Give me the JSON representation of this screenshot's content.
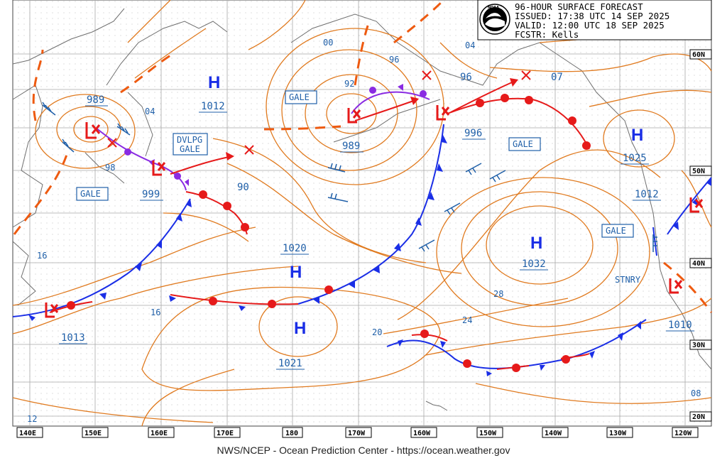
{
  "header": {
    "logo_text": "NOAA",
    "line1": "96-HOUR SURFACE FORECAST",
    "line2": "ISSUED: 17:38 UTC 14 SEP 2025",
    "line3": "VALID:  12:00 UTC 18 SEP 2025",
    "line4": "FCSTR:  Kells"
  },
  "footer": "NWS/NCEP - Ocean Prediction Center - https://ocean.weather.gov",
  "colors": {
    "isobar": "#e07a1f",
    "cold_front": "#1a2ee6",
    "warm_front": "#e61a1a",
    "occluded": "#8a2be2",
    "high": "#1a2ee6",
    "low": "#e61a1a",
    "grid": "#bfbfbf",
    "land": "#7a7a7a",
    "label_box": "#1f5fa8"
  },
  "lon_labels": [
    "140E",
    "150E",
    "160E",
    "170E",
    "180",
    "170W",
    "160W",
    "150W",
    "140W",
    "130W",
    "120W"
  ],
  "lat_labels": [
    "60N",
    "50N",
    "40N",
    "30N",
    "20N"
  ],
  "highs": [
    {
      "id": "h1",
      "letter": "H",
      "value": "1012"
    },
    {
      "id": "h2",
      "letter": "H",
      "value": "1020"
    },
    {
      "id": "h3",
      "letter": "H",
      "value": "1021"
    },
    {
      "id": "h4",
      "letter": "H",
      "value": "1032"
    },
    {
      "id": "h5",
      "letter": "H",
      "value": "1025"
    }
  ],
  "lows": [
    {
      "id": "l1",
      "value": "989"
    },
    {
      "id": "l2",
      "value": "999"
    },
    {
      "id": "l3",
      "value": "989"
    },
    {
      "id": "l4",
      "value": "996"
    },
    {
      "id": "l5",
      "value": "1013"
    },
    {
      "id": "l6",
      "value": "1012"
    },
    {
      "id": "l7",
      "value": "1010"
    }
  ],
  "warnings": {
    "gale1": "GALE",
    "gale2": "GALE",
    "gale3": "GALE",
    "gale4": "GALE",
    "dvlpg_line1": "DVLPG",
    "dvlpg_line2": "GALE"
  },
  "stnry": "STNRY",
  "isobar_labels": [
    "98",
    "04",
    "90",
    "00",
    "92",
    "96",
    "04",
    "96",
    "07",
    "16",
    "16",
    "28",
    "24",
    "20",
    "12",
    "08"
  ]
}
